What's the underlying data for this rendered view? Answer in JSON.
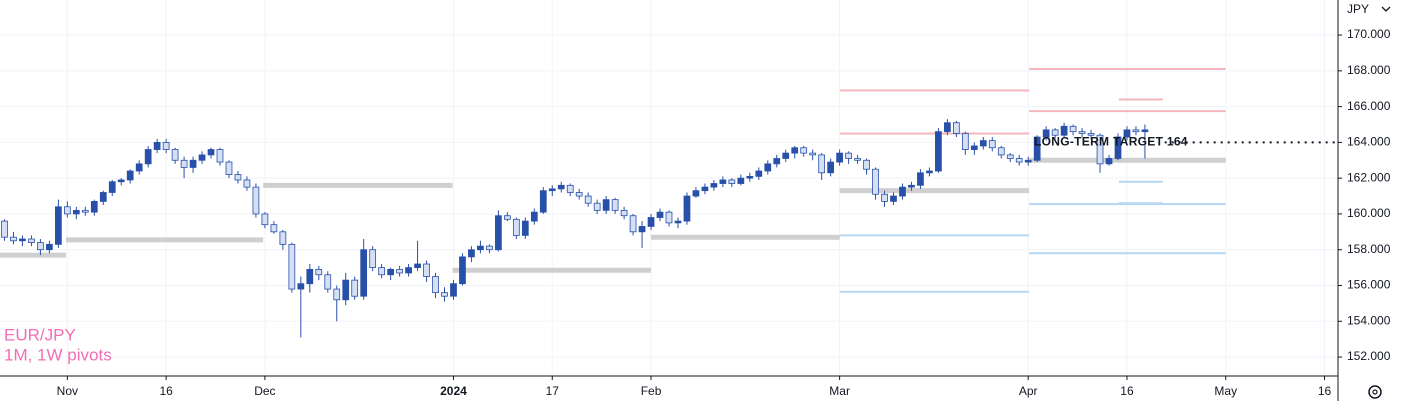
{
  "chart_data": {
    "type": "candlestick",
    "title": "EUR/JPY",
    "subtitle": "1M, 1W pivots",
    "y_label": "JPY",
    "up_color": "#2850a8",
    "down_color": "#d6e0f5",
    "wick_color": "#2850a8",
    "grid": true,
    "xlim": [
      -0.5,
      148.5
    ],
    "ylim": [
      150.94,
      171.96
    ],
    "xticks": [
      {
        "value": 7,
        "label": "Nov"
      },
      {
        "value": 18,
        "label": "16"
      },
      {
        "value": 29,
        "label": "Dec"
      },
      {
        "value": 50,
        "label": "2024"
      },
      {
        "value": 61,
        "label": "17"
      },
      {
        "value": 72,
        "label": "Feb"
      },
      {
        "value": 93,
        "label": "Mar"
      },
      {
        "value": 114,
        "label": "Apr"
      },
      {
        "value": 125,
        "label": "16"
      },
      {
        "value": 136,
        "label": "May"
      },
      {
        "value": 147,
        "label": "16"
      }
    ],
    "yticks": [
      {
        "value": 152,
        "label": "152.000"
      },
      {
        "value": 154,
        "label": "154.000"
      },
      {
        "value": 156,
        "label": "156.000"
      },
      {
        "value": 158,
        "label": "158.000"
      },
      {
        "value": 160,
        "label": "160.000"
      },
      {
        "value": 162,
        "label": "162.000"
      },
      {
        "value": 164,
        "label": "164.000"
      },
      {
        "value": 166,
        "label": "166.000"
      },
      {
        "value": 168,
        "label": "168.000"
      },
      {
        "value": 170,
        "label": "170.000"
      }
    ],
    "ohlc": [
      [
        159.6,
        159.7,
        158.5,
        158.7
      ],
      [
        158.7,
        159.0,
        158.3,
        158.5
      ],
      [
        158.5,
        158.8,
        158.2,
        158.6
      ],
      [
        158.6,
        158.8,
        158.2,
        158.4
      ],
      [
        158.4,
        158.6,
        157.7,
        158.0
      ],
      [
        158.0,
        158.5,
        157.8,
        158.3
      ],
      [
        158.3,
        160.8,
        158.1,
        160.4
      ],
      [
        160.4,
        160.7,
        159.8,
        160.0
      ],
      [
        160.0,
        160.4,
        159.7,
        160.2
      ],
      [
        160.2,
        160.4,
        159.9,
        160.1
      ],
      [
        160.1,
        160.8,
        159.9,
        160.7
      ],
      [
        160.7,
        161.3,
        160.5,
        161.2
      ],
      [
        161.2,
        161.9,
        161.0,
        161.8
      ],
      [
        161.8,
        162.0,
        161.6,
        161.9
      ],
      [
        161.9,
        162.5,
        161.7,
        162.4
      ],
      [
        162.4,
        163.0,
        162.2,
        162.8
      ],
      [
        162.8,
        163.8,
        162.6,
        163.6
      ],
      [
        163.6,
        164.2,
        163.4,
        164.0
      ],
      [
        164.0,
        164.2,
        163.4,
        163.6
      ],
      [
        163.6,
        163.7,
        162.8,
        163.0
      ],
      [
        163.0,
        163.2,
        162.0,
        162.6
      ],
      [
        162.6,
        163.2,
        162.3,
        163.0
      ],
      [
        163.0,
        163.5,
        162.8,
        163.3
      ],
      [
        163.3,
        163.7,
        163.1,
        163.6
      ],
      [
        163.6,
        163.7,
        162.7,
        162.9
      ],
      [
        162.9,
        163.0,
        162.0,
        162.2
      ],
      [
        162.2,
        162.4,
        161.7,
        161.9
      ],
      [
        161.9,
        162.1,
        161.3,
        161.5
      ],
      [
        161.5,
        161.7,
        159.8,
        160.0
      ],
      [
        160.0,
        160.1,
        159.2,
        159.4
      ],
      [
        159.4,
        159.6,
        158.9,
        159.0
      ],
      [
        159.0,
        159.1,
        158.0,
        158.3
      ],
      [
        158.3,
        158.4,
        155.6,
        155.8
      ],
      [
        155.8,
        156.5,
        153.1,
        156.1
      ],
      [
        156.1,
        157.2,
        155.6,
        156.9
      ],
      [
        156.9,
        157.1,
        156.3,
        156.6
      ],
      [
        156.6,
        156.8,
        155.6,
        155.8
      ],
      [
        155.8,
        156.0,
        154.0,
        155.2
      ],
      [
        155.2,
        156.7,
        154.9,
        156.3
      ],
      [
        156.3,
        156.5,
        155.2,
        155.4
      ],
      [
        155.4,
        158.6,
        155.2,
        158.0
      ],
      [
        158.0,
        158.2,
        156.8,
        157.0
      ],
      [
        157.0,
        157.2,
        156.4,
        156.6
      ],
      [
        156.6,
        157.0,
        156.3,
        156.9
      ],
      [
        156.9,
        157.1,
        156.5,
        156.7
      ],
      [
        156.7,
        157.2,
        156.5,
        157.0
      ],
      [
        157.0,
        158.5,
        156.8,
        157.2
      ],
      [
        157.2,
        157.4,
        156.2,
        156.5
      ],
      [
        156.5,
        156.7,
        155.3,
        155.6
      ],
      [
        155.6,
        155.9,
        155.1,
        155.4
      ],
      [
        155.4,
        156.3,
        155.2,
        156.1
      ],
      [
        156.1,
        157.8,
        156.0,
        157.6
      ],
      [
        157.6,
        158.2,
        157.3,
        158.0
      ],
      [
        158.0,
        158.5,
        157.8,
        158.2
      ],
      [
        158.2,
        158.3,
        157.8,
        158.0
      ],
      [
        158.0,
        160.2,
        157.9,
        159.9
      ],
      [
        159.9,
        160.1,
        159.6,
        159.7
      ],
      [
        159.7,
        159.8,
        158.6,
        158.8
      ],
      [
        158.8,
        159.8,
        158.6,
        159.6
      ],
      [
        159.6,
        160.3,
        159.4,
        160.1
      ],
      [
        160.1,
        161.5,
        160.0,
        161.3
      ],
      [
        161.3,
        161.6,
        161.0,
        161.4
      ],
      [
        161.4,
        161.8,
        161.2,
        161.6
      ],
      [
        161.6,
        161.7,
        161.0,
        161.2
      ],
      [
        161.2,
        161.4,
        160.8,
        161.0
      ],
      [
        161.0,
        161.2,
        160.4,
        160.6
      ],
      [
        160.6,
        160.8,
        160.0,
        160.2
      ],
      [
        160.2,
        161.0,
        160.0,
        160.8
      ],
      [
        160.8,
        160.9,
        160.0,
        160.2
      ],
      [
        160.2,
        160.4,
        159.7,
        159.9
      ],
      [
        159.9,
        160.0,
        158.8,
        159.0
      ],
      [
        159.0,
        159.6,
        158.1,
        159.3
      ],
      [
        159.3,
        160.0,
        159.1,
        159.8
      ],
      [
        159.8,
        160.3,
        159.6,
        160.1
      ],
      [
        160.1,
        160.2,
        159.3,
        159.5
      ],
      [
        159.5,
        159.8,
        159.2,
        159.6
      ],
      [
        159.6,
        161.2,
        159.4,
        161.0
      ],
      [
        161.0,
        161.5,
        160.9,
        161.3
      ],
      [
        161.3,
        161.7,
        161.1,
        161.5
      ],
      [
        161.5,
        161.9,
        161.3,
        161.7
      ],
      [
        161.7,
        162.1,
        161.5,
        161.9
      ],
      [
        161.9,
        162.0,
        161.5,
        161.7
      ],
      [
        161.7,
        162.2,
        161.6,
        162.0
      ],
      [
        162.0,
        162.3,
        161.8,
        162.1
      ],
      [
        162.1,
        162.6,
        161.9,
        162.4
      ],
      [
        162.4,
        163.0,
        162.2,
        162.8
      ],
      [
        162.8,
        163.3,
        162.6,
        163.1
      ],
      [
        163.1,
        163.6,
        162.9,
        163.4
      ],
      [
        163.4,
        163.8,
        163.1,
        163.7
      ],
      [
        163.7,
        163.8,
        163.2,
        163.4
      ],
      [
        163.4,
        163.6,
        163.0,
        163.3
      ],
      [
        163.3,
        163.4,
        161.9,
        162.3
      ],
      [
        162.3,
        163.1,
        162.1,
        162.9
      ],
      [
        162.9,
        163.6,
        162.7,
        163.4
      ],
      [
        163.4,
        163.5,
        162.8,
        163.1
      ],
      [
        163.1,
        163.3,
        162.8,
        163.0
      ],
      [
        163.0,
        163.1,
        162.2,
        162.5
      ],
      [
        162.5,
        162.6,
        160.8,
        161.1
      ],
      [
        161.1,
        161.3,
        160.4,
        160.7
      ],
      [
        160.7,
        161.2,
        160.5,
        161.0
      ],
      [
        161.0,
        161.7,
        160.8,
        161.5
      ],
      [
        161.5,
        161.8,
        161.3,
        161.6
      ],
      [
        161.6,
        162.5,
        161.4,
        162.3
      ],
      [
        162.3,
        162.6,
        162.1,
        162.4
      ],
      [
        162.4,
        164.8,
        162.3,
        164.6
      ],
      [
        164.6,
        165.3,
        164.4,
        165.1
      ],
      [
        165.1,
        165.2,
        164.3,
        164.5
      ],
      [
        164.5,
        164.6,
        163.3,
        163.6
      ],
      [
        163.6,
        164.0,
        163.3,
        163.8
      ],
      [
        163.8,
        164.3,
        163.6,
        164.1
      ],
      [
        164.1,
        164.3,
        163.5,
        163.7
      ],
      [
        163.7,
        163.8,
        163.1,
        163.3
      ],
      [
        163.3,
        163.4,
        162.9,
        163.1
      ],
      [
        163.1,
        163.3,
        162.7,
        162.9
      ],
      [
        162.9,
        163.2,
        162.7,
        163.0
      ],
      [
        163.0,
        164.4,
        162.9,
        164.3
      ],
      [
        164.3,
        164.9,
        164.1,
        164.7
      ],
      [
        164.7,
        164.8,
        164.2,
        164.4
      ],
      [
        164.4,
        165.1,
        164.3,
        164.9
      ],
      [
        164.9,
        165.0,
        164.4,
        164.6
      ],
      [
        164.6,
        164.8,
        164.3,
        164.5
      ],
      [
        164.5,
        164.7,
        164.2,
        164.4
      ],
      [
        164.4,
        164.5,
        162.3,
        162.8
      ],
      [
        162.8,
        163.3,
        162.7,
        163.1
      ],
      [
        163.1,
        164.5,
        163.0,
        164.3
      ],
      [
        164.3,
        164.9,
        164.1,
        164.7
      ],
      [
        164.7,
        164.9,
        164.4,
        164.6
      ],
      [
        164.6,
        165.0,
        163.1,
        164.7
      ]
    ],
    "levels": [
      {
        "x": [
          -0.5,
          6.85
        ],
        "y": 157.7,
        "color": "#cfcfcf"
      },
      {
        "x": [
          6.85,
          28.8
        ],
        "y": 158.55,
        "color": "#cfcfcf"
      },
      {
        "x": [
          28.8,
          49.9
        ],
        "y": 161.6,
        "color": "#cfcfcf"
      },
      {
        "x": [
          49.9,
          72
        ],
        "y": 156.85,
        "color": "#cfcfcf"
      },
      {
        "x": [
          72,
          93
        ],
        "y": 158.7,
        "color": "#cfcfcf"
      },
      {
        "x": [
          93,
          114.1
        ],
        "y": 166.9,
        "color": "#f5b7bb"
      },
      {
        "x": [
          93,
          114.1
        ],
        "y": 164.5,
        "color": "#f5b7bb"
      },
      {
        "x": [
          93,
          114.1
        ],
        "y": 161.3,
        "color": "#cfcfcf"
      },
      {
        "x": [
          93,
          114.1
        ],
        "y": 158.8,
        "color": "#b6d6f2"
      },
      {
        "x": [
          93,
          114.1
        ],
        "y": 155.65,
        "color": "#b6d6f2"
      },
      {
        "x": [
          114.1,
          136
        ],
        "y": 168.1,
        "color": "#f5b7bb"
      },
      {
        "x": [
          114.1,
          136
        ],
        "y": 165.75,
        "color": "#f5b7bb"
      },
      {
        "x": [
          114.1,
          136
        ],
        "y": 163.0,
        "color": "#cfcfcf"
      },
      {
        "x": [
          114.1,
          136
        ],
        "y": 160.55,
        "color": "#b6d6f2"
      },
      {
        "x": [
          114.1,
          136
        ],
        "y": 157.8,
        "color": "#b6d6f2"
      },
      {
        "x": [
          124.1,
          129
        ],
        "y": 166.4,
        "color": "#f5b7bb"
      },
      {
        "x": [
          124.1,
          129
        ],
        "y": 161.8,
        "color": "#b6d6f2"
      },
      {
        "x": [
          124.1,
          129
        ],
        "y": 160.6,
        "color": "#b6d6f2"
      }
    ],
    "annotation": {
      "text": "LONG-TERM TARGET 164",
      "value": 164,
      "x_start": 129.2
    }
  }
}
